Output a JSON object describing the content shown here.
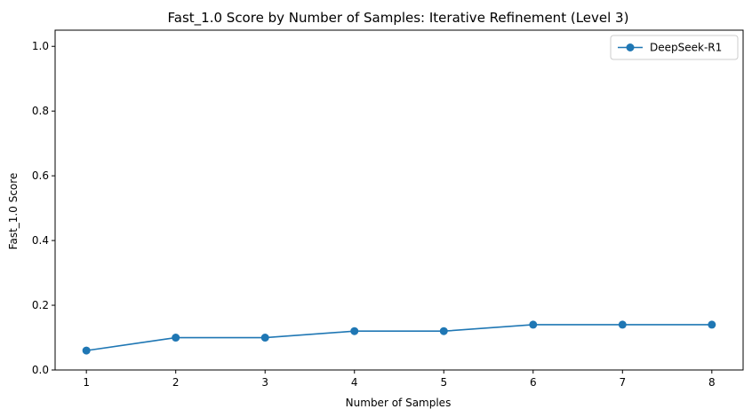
{
  "chart_data": {
    "type": "line",
    "title": "Fast_1.0 Score by Number of Samples: Iterative Refinement (Level 3)",
    "xlabel": "Number of Samples",
    "ylabel": "Fast_1.0 Score",
    "x": [
      1,
      2,
      3,
      4,
      5,
      6,
      7,
      8
    ],
    "xlim": [
      0.65,
      8.35
    ],
    "ylim": [
      0.0,
      1.05
    ],
    "xticks": [
      1,
      2,
      3,
      4,
      5,
      6,
      7,
      8
    ],
    "xtick_labels": [
      "1",
      "2",
      "3",
      "4",
      "5",
      "6",
      "7",
      "8"
    ],
    "yticks": [
      0.0,
      0.2,
      0.4,
      0.6,
      0.8,
      1.0
    ],
    "ytick_labels": [
      "0.0",
      "0.2",
      "0.4",
      "0.6",
      "0.8",
      "1.0"
    ],
    "grid": false,
    "legend_position": "top-right",
    "series": [
      {
        "name": "DeepSeek-R1",
        "color": "#1f77b4",
        "marker": "circle",
        "values": [
          0.06,
          0.1,
          0.1,
          0.12,
          0.12,
          0.14,
          0.14,
          0.14
        ]
      }
    ]
  }
}
